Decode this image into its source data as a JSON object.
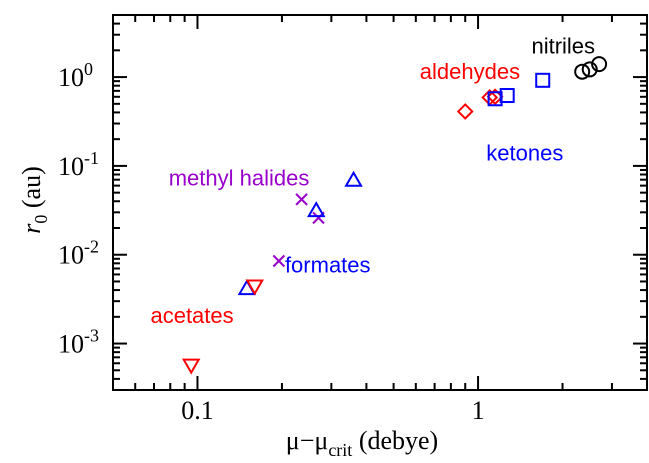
{
  "chart_data": {
    "type": "scatter",
    "title": "",
    "xlabel": {
      "main": "μ−μ",
      "sub": "crit",
      "unit": "(debye)"
    },
    "ylabel": {
      "var": "r",
      "sub": "0",
      "unit": "(au)"
    },
    "xscale": "log",
    "yscale": "log",
    "xlim": [
      0.05,
      4.0
    ],
    "ylim": [
      0.0003,
      5.0
    ],
    "grid": false,
    "x_ticks": [
      {
        "value": 0.1,
        "label": "0.1"
      },
      {
        "value": 1,
        "label": "1"
      }
    ],
    "y_ticks": [
      {
        "value": 0.001,
        "base": "10",
        "exp": "-3"
      },
      {
        "value": 0.01,
        "base": "10",
        "exp": "-2"
      },
      {
        "value": 0.1,
        "base": "10",
        "exp": "-1"
      },
      {
        "value": 1,
        "base": "10",
        "exp": "0"
      }
    ],
    "series": [
      {
        "name": "nitriles",
        "marker": "circle",
        "color": "#000000",
        "points": [
          [
            2.35,
            1.15
          ],
          [
            2.5,
            1.22
          ],
          [
            2.7,
            1.4
          ]
        ]
      },
      {
        "name": "aldehydes",
        "marker": "diamond",
        "color": "#ff0000",
        "points": [
          [
            0.9,
            0.41
          ],
          [
            1.1,
            0.59
          ],
          [
            1.15,
            0.6
          ]
        ]
      },
      {
        "name": "ketones",
        "marker": "square",
        "color": "#0000ff",
        "points": [
          [
            1.15,
            0.57
          ],
          [
            1.27,
            0.62
          ],
          [
            1.7,
            0.92
          ]
        ]
      },
      {
        "name": "methyl halides",
        "marker": "x",
        "color": "#9900cc",
        "points": [
          [
            0.195,
            0.0085
          ],
          [
            0.235,
            0.042
          ],
          [
            0.27,
            0.026
          ]
        ]
      },
      {
        "name": "formates",
        "marker": "triangle-up",
        "color": "#0000ff",
        "points": [
          [
            0.15,
            0.0041
          ],
          [
            0.265,
            0.031
          ],
          [
            0.36,
            0.068
          ]
        ]
      },
      {
        "name": "acetates",
        "marker": "triangle-down",
        "color": "#ff0000",
        "points": [
          [
            0.095,
            0.00058
          ],
          [
            0.16,
            0.0045
          ]
        ]
      }
    ],
    "annotations": [
      {
        "text": "nitriles",
        "color": "#000000",
        "x": 1.55,
        "y": 1.85
      },
      {
        "text": "aldehydes",
        "color": "#ff0000",
        "x": 0.62,
        "y": 0.95
      },
      {
        "text": "ketones",
        "color": "#0000ff",
        "x": 1.07,
        "y": 0.115
      },
      {
        "text": "methyl halides",
        "color": "#9900cc",
        "x": 0.079,
        "y": 0.06
      },
      {
        "text": "formates",
        "color": "#0000ff",
        "x": 0.205,
        "y": 0.0063
      },
      {
        "text": "acetates",
        "color": "#ff0000",
        "x": 0.068,
        "y": 0.0017
      }
    ]
  }
}
